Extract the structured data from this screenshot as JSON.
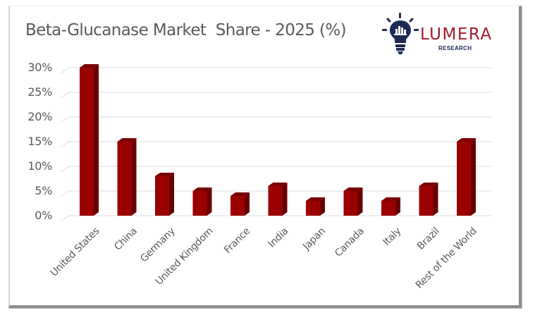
{
  "title": "Beta-Glucanase Market  Share - 2025 (%)",
  "logo": {
    "wordmark": "LUMERA",
    "subtext": "RESEARCH",
    "icon": "lightbulb-icon",
    "colors": {
      "wordmark": "#a01c26",
      "icon": "#1e2a55"
    }
  },
  "colors": {
    "bar_front": "#9a0000",
    "bar_side": "#680000",
    "bar_top": "#7a0000",
    "gridline": "#e3e3e3",
    "text": "#595959"
  },
  "chart_data": {
    "type": "bar",
    "title": "Beta-Glucanase Market  Share - 2025 (%)",
    "xlabel": "",
    "ylabel": "",
    "categories": [
      "United States",
      "China",
      "Germany",
      "United Kingdom",
      "France",
      "India",
      "Japan",
      "Canada",
      "Italy",
      "Brazil",
      "Rest of the World"
    ],
    "values": [
      30,
      15,
      8,
      5,
      4,
      6,
      3,
      5,
      3,
      6,
      15
    ],
    "unit": "%",
    "ylim": [
      0,
      30
    ],
    "yticks": [
      "0%",
      "5%",
      "10%",
      "15%",
      "20%",
      "25%",
      "30%"
    ],
    "grid": true,
    "legend": null,
    "style": "3d-column"
  }
}
